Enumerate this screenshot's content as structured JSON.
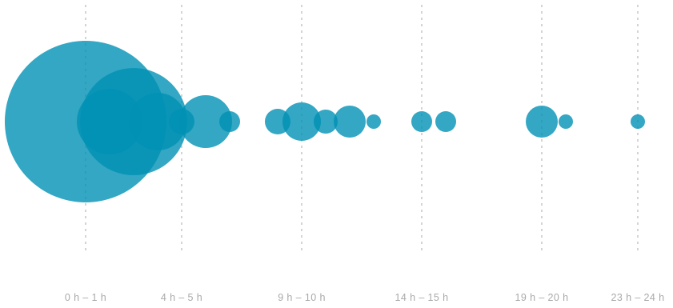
{
  "chart_data": {
    "type": "scatter",
    "description_kind": "bubble-timeline",
    "x_unit": "hour",
    "xlim": [
      0,
      24
    ],
    "tick_labels": [
      {
        "hour": 0,
        "label": "0 h – 1 h"
      },
      {
        "hour": 4,
        "label": "4 h – 5 h"
      },
      {
        "hour": 9,
        "label": "9 h – 10 h"
      },
      {
        "hour": 14,
        "label": "14 h – 15 h"
      },
      {
        "hour": 19,
        "label": "19 h – 20 h"
      },
      {
        "hour": 23,
        "label": "23 h – 24 h"
      }
    ],
    "points": [
      {
        "hour": 0,
        "r": 101
      },
      {
        "hour": 2,
        "r": 67
      },
      {
        "hour": 1,
        "r": 41
      },
      {
        "hour": 3,
        "r": 36
      },
      {
        "hour": 4,
        "r": 16
      },
      {
        "hour": 5,
        "r": 33
      },
      {
        "hour": 6,
        "r": 13
      },
      {
        "hour": 8,
        "r": 16
      },
      {
        "hour": 9,
        "r": 24
      },
      {
        "hour": 10,
        "r": 15
      },
      {
        "hour": 11,
        "r": 20
      },
      {
        "hour": 12,
        "r": 9
      },
      {
        "hour": 14,
        "r": 13
      },
      {
        "hour": 15,
        "r": 13
      },
      {
        "hour": 19,
        "r": 20
      },
      {
        "hour": 20,
        "r": 9
      },
      {
        "hour": 23,
        "r": 9
      }
    ],
    "bubble_color": "#0091b4",
    "bubble_opacity": 0.8,
    "guide_color": "#bdbdbd",
    "label_color": "#a9a9a9",
    "grid": false,
    "legend": "none"
  }
}
